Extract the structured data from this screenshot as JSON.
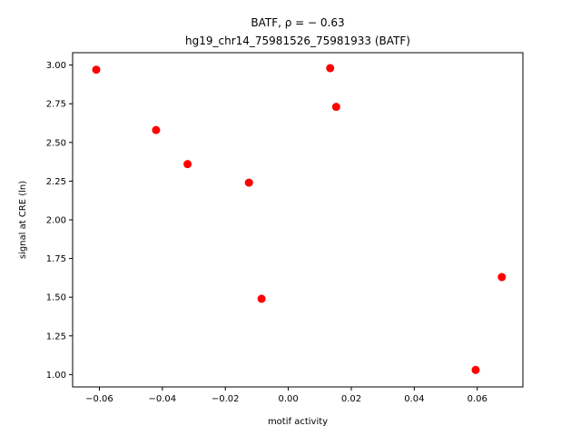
{
  "chart_data": {
    "type": "scatter",
    "title_line1": "BATF, ρ = − 0.63",
    "title_line2": "hg19_chr14_75981526_75981933 (BATF)",
    "xlabel": "motif activity",
    "ylabel": "signal at CRE (ln)",
    "xlim": [
      -0.0685,
      0.0745
    ],
    "ylim": [
      0.92,
      3.08
    ],
    "x_ticks": [
      -0.06,
      -0.04,
      -0.02,
      0.0,
      0.02,
      0.04,
      0.06
    ],
    "x_tick_labels": [
      "−0.06",
      "−0.04",
      "−0.02",
      "0.00",
      "0.02",
      "0.04",
      "0.06"
    ],
    "y_ticks": [
      1.0,
      1.25,
      1.5,
      1.75,
      2.0,
      2.25,
      2.5,
      2.75,
      3.0
    ],
    "y_tick_labels": [
      "1.00",
      "1.25",
      "1.50",
      "1.75",
      "2.00",
      "2.25",
      "2.50",
      "2.75",
      "3.00"
    ],
    "grid": false,
    "marker_color": "#ff0000",
    "points": [
      {
        "x": -0.061,
        "y": 2.97
      },
      {
        "x": -0.042,
        "y": 2.58
      },
      {
        "x": -0.032,
        "y": 2.36
      },
      {
        "x": -0.0125,
        "y": 2.24
      },
      {
        "x": -0.0085,
        "y": 1.49
      },
      {
        "x": 0.0133,
        "y": 2.98
      },
      {
        "x": 0.0152,
        "y": 2.73
      },
      {
        "x": 0.0595,
        "y": 1.03
      },
      {
        "x": 0.0678,
        "y": 1.63
      }
    ]
  }
}
